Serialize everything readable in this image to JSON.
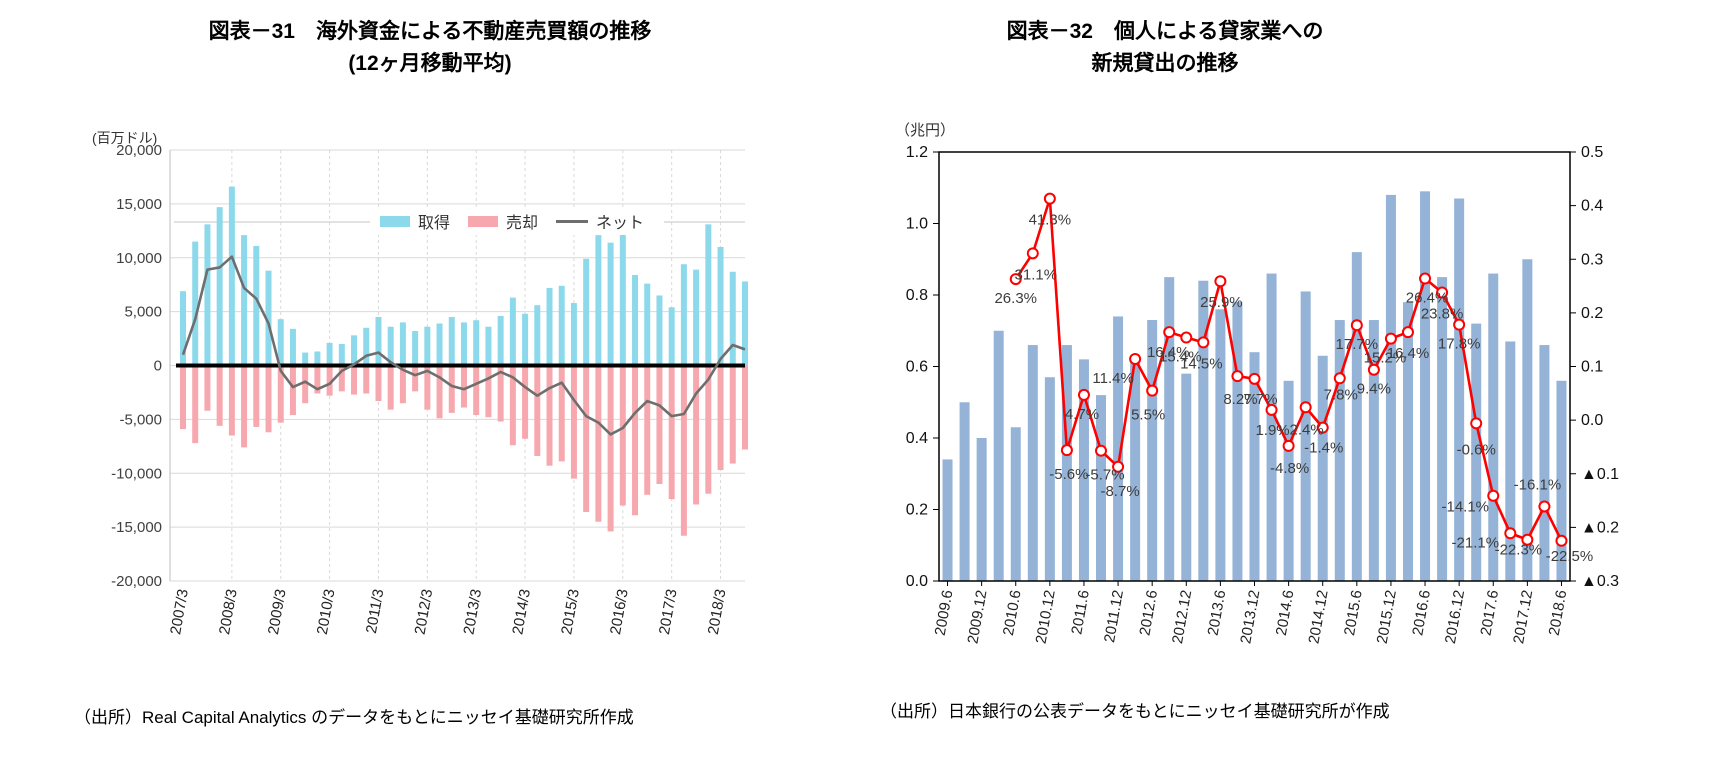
{
  "figure31": {
    "title": "図表－31　海外資金による不動産売買額の推移",
    "subtitle": "(12ヶ月移動平均)",
    "axis_unit": "(百万ドル)",
    "source": "（出所）Real Capital Analytics のデータをもとにニッセイ基礎研究所作成",
    "legend": {
      "acquisition": "取得",
      "sale": "売却",
      "net": "ネット"
    }
  },
  "figure32": {
    "title": "図表－32　個人による貸家業への",
    "subtitle": "新規貸出の推移",
    "axis_unit": "（兆円）",
    "source": "（出所）日本銀行の公表データをもとにニッセイ基礎研究所が作成"
  },
  "chart_data": [
    {
      "id": "figure31",
      "type": "bar",
      "title": "図表－31　海外資金による不動産売買額の推移 (12ヶ月移動平均)",
      "ylabel": "(百万ドル)",
      "x_frequency": "quarterly",
      "x_range": [
        "2007/3",
        "2018/9"
      ],
      "x_tick_labels": [
        "2007/3",
        "2008/3",
        "2009/3",
        "2010/3",
        "2011/3",
        "2012/3",
        "2013/3",
        "2014/3",
        "2015/3",
        "2016/3",
        "2017/3",
        "2018/3"
      ],
      "ylim": [
        -20000,
        20000
      ],
      "y_ticks": [
        {
          "v": 20000,
          "label": "20,000"
        },
        {
          "v": 15000,
          "label": "15,000"
        },
        {
          "v": 10000,
          "label": "10,000"
        },
        {
          "v": 5000,
          "label": "5,000"
        },
        {
          "v": 0,
          "label": "0"
        },
        {
          "v": -5000,
          "label": "-5,000"
        },
        {
          "v": -10000,
          "label": "-10,000"
        },
        {
          "v": -15000,
          "label": "-15,000"
        },
        {
          "v": -20000,
          "label": "-20,000"
        }
      ],
      "grid": true,
      "legend_position": "top-inside",
      "series": [
        {
          "name": "取得",
          "kind": "bar",
          "color": "#8DD9EC",
          "values": [
            6900,
            11500,
            13100,
            14700,
            16600,
            12100,
            11100,
            8800,
            4300,
            3400,
            1200,
            1300,
            2100,
            2000,
            2800,
            3500,
            4500,
            3600,
            4000,
            3200,
            3600,
            3900,
            4500,
            4000,
            4200,
            3600,
            4600,
            6300,
            4800,
            5600,
            7200,
            7400,
            5800,
            9900,
            12100,
            11400,
            12700,
            8400,
            7600,
            6500,
            5400,
            9400,
            8900,
            13100,
            11000,
            8700,
            7800
          ]
        },
        {
          "name": "売却",
          "kind": "bar",
          "color": "#F7A8AE",
          "values": [
            -5900,
            -7200,
            -4200,
            -5600,
            -6500,
            -7600,
            -5700,
            -6200,
            -5300,
            -4600,
            -3500,
            -2600,
            -2800,
            -2400,
            -2700,
            -2600,
            -3300,
            -4100,
            -3500,
            -2400,
            -4100,
            -4900,
            -4400,
            -3900,
            -4600,
            -4800,
            -5200,
            -7400,
            -6800,
            -8400,
            -9300,
            -8900,
            -10500,
            -13600,
            -14500,
            -15400,
            -13000,
            -13900,
            -12000,
            -11000,
            -12400,
            -15800,
            -12900,
            -11900,
            -9700,
            -9100,
            -7800
          ]
        },
        {
          "name": "ネット",
          "kind": "line",
          "color": "#6E6E6E",
          "values": [
            1000,
            4300,
            8900,
            9100,
            10100,
            7200,
            6200,
            3900,
            -500,
            -2000,
            -1500,
            -2200,
            -1700,
            -500,
            100,
            900,
            1200,
            300,
            -400,
            -900,
            -500,
            -1100,
            -1900,
            -2200,
            -1700,
            -1200,
            -600,
            -1100,
            -2000,
            -2800,
            -2100,
            -1600,
            -3200,
            -4700,
            -5300,
            -6400,
            -5800,
            -4400,
            -3300,
            -3700,
            -4700,
            -4500,
            -2600,
            -1300,
            600,
            1900,
            1500
          ]
        }
      ]
    },
    {
      "id": "figure32",
      "type": "bar",
      "title": "図表－32　個人による貸家業への新規貸出の推移",
      "ylabel_left": "（兆円）",
      "x_frequency": "quarterly",
      "x_range": [
        "2009.6",
        "2018.6"
      ],
      "x_tick_labels": [
        "2009.6",
        "2009.12",
        "2010.6",
        "2010.12",
        "2011.6",
        "2011.12",
        "2012.6",
        "2012.12",
        "2013.6",
        "2013.12",
        "2014.6",
        "2014.12",
        "2015.6",
        "2015.12",
        "2016.6",
        "2016.12",
        "2017.6",
        "2017.12",
        "2018.6"
      ],
      "left_axis": {
        "min": 0,
        "max": 1.2,
        "step": 0.2,
        "ticks": [
          "1.2",
          "1.0",
          "0.8",
          "0.6",
          "0.4",
          "0.2",
          "0.0"
        ]
      },
      "right_axis": {
        "min": -0.3,
        "max": 0.5,
        "step": 0.1,
        "ticks": [
          "0.5",
          "0.4",
          "0.3",
          "0.2",
          "0.1",
          "0.0",
          "▲0.1",
          "▲0.2",
          "▲0.3"
        ]
      },
      "grid": false,
      "series": [
        {
          "kind": "bar",
          "axis": "left",
          "color": "#95B3D7",
          "values": [
            0.34,
            0.5,
            0.4,
            0.7,
            0.43,
            0.66,
            0.57,
            0.66,
            0.62,
            0.52,
            0.74,
            0.62,
            0.73,
            0.85,
            0.58,
            0.84,
            0.76,
            0.78,
            0.64,
            0.86,
            0.56,
            0.81,
            0.63,
            0.73,
            0.92,
            0.73,
            1.08,
            0.78,
            1.09,
            0.85,
            1.07,
            0.72,
            0.86,
            0.67,
            0.9,
            0.66,
            0.56
          ]
        },
        {
          "kind": "line",
          "axis": "right",
          "color": "#FF0000",
          "marker": "circle-white",
          "start_index": 4,
          "values": [
            26.3,
            31.1,
            41.3,
            -5.6,
            4.7,
            -5.7,
            -8.7,
            11.4,
            5.5,
            16.4,
            15.4,
            14.5,
            25.9,
            8.2,
            7.7,
            1.9,
            -4.8,
            2.4,
            -1.4,
            7.8,
            17.7,
            9.4,
            15.2,
            16.4,
            26.4,
            23.8,
            17.8,
            -0.6,
            -14.1,
            -21.1,
            -22.3,
            -16.1,
            -22.5
          ],
          "labels": [
            "26.3%",
            "31.1%",
            "41.3%",
            "-5.6%",
            "4.7%",
            "-5.7%",
            "-8.7%",
            "11.4%",
            "5.5%",
            "16.4%",
            "15.4%",
            "14.5%",
            "25.9%",
            "8.2%",
            "7.7%",
            "1.9%",
            "-4.8%",
            "2.4%",
            "-1.4%",
            "7.8%",
            "17.7%",
            "9.4%",
            "15.2%",
            "16.4%",
            "26.4%",
            "23.8%",
            "17.8%",
            "-0.6%",
            "-14.1%",
            "-21.1%",
            "-22.3%",
            "-16.1%",
            "-22.5%"
          ]
        }
      ]
    }
  ]
}
